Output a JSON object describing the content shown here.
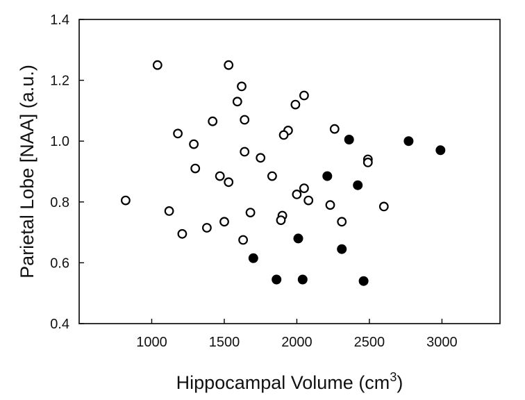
{
  "chart_data": {
    "type": "scatter",
    "xlabel": "Hippocampal Volume (cm",
    "xlabel_superscript": "3",
    "xlabel_suffix": ")",
    "ylabel": "Parietal Lobe [NAA] (a.u.)",
    "xlim": [
      500,
      3400
    ],
    "ylim": [
      0.4,
      1.4
    ],
    "x_ticks": [
      1000,
      1500,
      2000,
      2500,
      3000
    ],
    "x_tick_labels": [
      "1000",
      "1500",
      "2000",
      "2500",
      "3000"
    ],
    "y_ticks": [
      0.4,
      0.6,
      0.8,
      1.0,
      1.2,
      1.4
    ],
    "y_tick_labels": [
      "0.4",
      "0.6",
      "0.8",
      "1.0",
      "1.2",
      "1.4"
    ],
    "grid": false,
    "series": [
      {
        "marker": "open-circle",
        "color": "#000000",
        "points": [
          [
            1040,
            1.25
          ],
          [
            1530,
            1.25
          ],
          [
            1620,
            1.18
          ],
          [
            2050,
            1.15
          ],
          [
            1590,
            1.13
          ],
          [
            1990,
            1.12
          ],
          [
            1640,
            1.07
          ],
          [
            1420,
            1.065
          ],
          [
            1940,
            1.035
          ],
          [
            1910,
            1.02
          ],
          [
            1180,
            1.025
          ],
          [
            2260,
            1.04
          ],
          [
            1290,
            0.99
          ],
          [
            1640,
            0.965
          ],
          [
            1750,
            0.945
          ],
          [
            2490,
            0.94
          ],
          [
            2490,
            0.93
          ],
          [
            1300,
            0.91
          ],
          [
            1470,
            0.885
          ],
          [
            1530,
            0.865
          ],
          [
            1830,
            0.885
          ],
          [
            2050,
            0.845
          ],
          [
            2000,
            0.825
          ],
          [
            2080,
            0.805
          ],
          [
            820,
            0.805
          ],
          [
            2230,
            0.79
          ],
          [
            2600,
            0.785
          ],
          [
            1120,
            0.77
          ],
          [
            1680,
            0.765
          ],
          [
            1900,
            0.755
          ],
          [
            1890,
            0.74
          ],
          [
            1500,
            0.735
          ],
          [
            2310,
            0.735
          ],
          [
            1380,
            0.715
          ],
          [
            1210,
            0.695
          ],
          [
            1630,
            0.675
          ]
        ]
      },
      {
        "marker": "filled-circle",
        "color": "#000000",
        "points": [
          [
            2360,
            1.005
          ],
          [
            2770,
            1.0
          ],
          [
            2990,
            0.97
          ],
          [
            2210,
            0.885
          ],
          [
            2420,
            0.855
          ],
          [
            2010,
            0.68
          ],
          [
            2310,
            0.645
          ],
          [
            1700,
            0.615
          ],
          [
            1860,
            0.545
          ],
          [
            2040,
            0.545
          ],
          [
            2460,
            0.54
          ]
        ]
      }
    ]
  }
}
